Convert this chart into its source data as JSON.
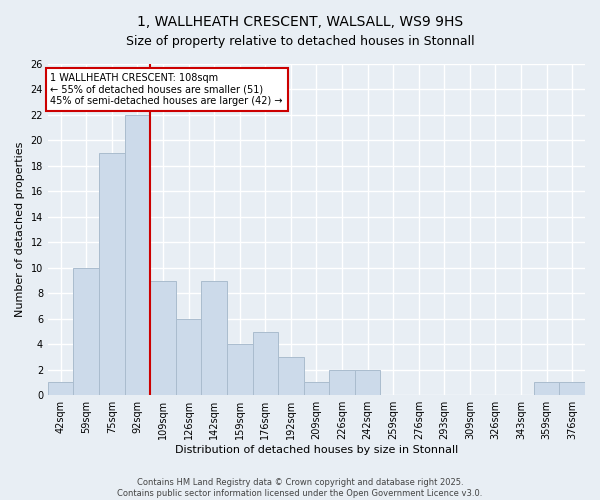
{
  "title": "1, WALLHEATH CRESCENT, WALSALL, WS9 9HS",
  "subtitle": "Size of property relative to detached houses in Stonnall",
  "xlabel": "Distribution of detached houses by size in Stonnall",
  "ylabel": "Number of detached properties",
  "bar_labels": [
    "42sqm",
    "59sqm",
    "75sqm",
    "92sqm",
    "109sqm",
    "126sqm",
    "142sqm",
    "159sqm",
    "176sqm",
    "192sqm",
    "209sqm",
    "226sqm",
    "242sqm",
    "259sqm",
    "276sqm",
    "293sqm",
    "309sqm",
    "326sqm",
    "343sqm",
    "359sqm",
    "376sqm"
  ],
  "bar_values": [
    1,
    10,
    19,
    22,
    9,
    6,
    9,
    4,
    5,
    3,
    1,
    2,
    2,
    0,
    0,
    0,
    0,
    0,
    0,
    1,
    1
  ],
  "bar_color": "#ccdaea",
  "bar_edgecolor": "#aabcce",
  "vline_color": "#cc0000",
  "ylim": [
    0,
    26
  ],
  "yticks": [
    0,
    2,
    4,
    6,
    8,
    10,
    12,
    14,
    16,
    18,
    20,
    22,
    24,
    26
  ],
  "annotation_text": "1 WALLHEATH CRESCENT: 108sqm\n← 55% of detached houses are smaller (51)\n45% of semi-detached houses are larger (42) →",
  "annotation_box_facecolor": "#ffffff",
  "annotation_box_edgecolor": "#cc0000",
  "footer_text": "Contains HM Land Registry data © Crown copyright and database right 2025.\nContains public sector information licensed under the Open Government Licence v3.0.",
  "bg_color": "#e8eef4",
  "grid_color": "#ffffff",
  "title_fontsize": 10,
  "subtitle_fontsize": 9,
  "axis_label_fontsize": 8,
  "tick_fontsize": 7,
  "annotation_fontsize": 7,
  "footer_fontsize": 6
}
